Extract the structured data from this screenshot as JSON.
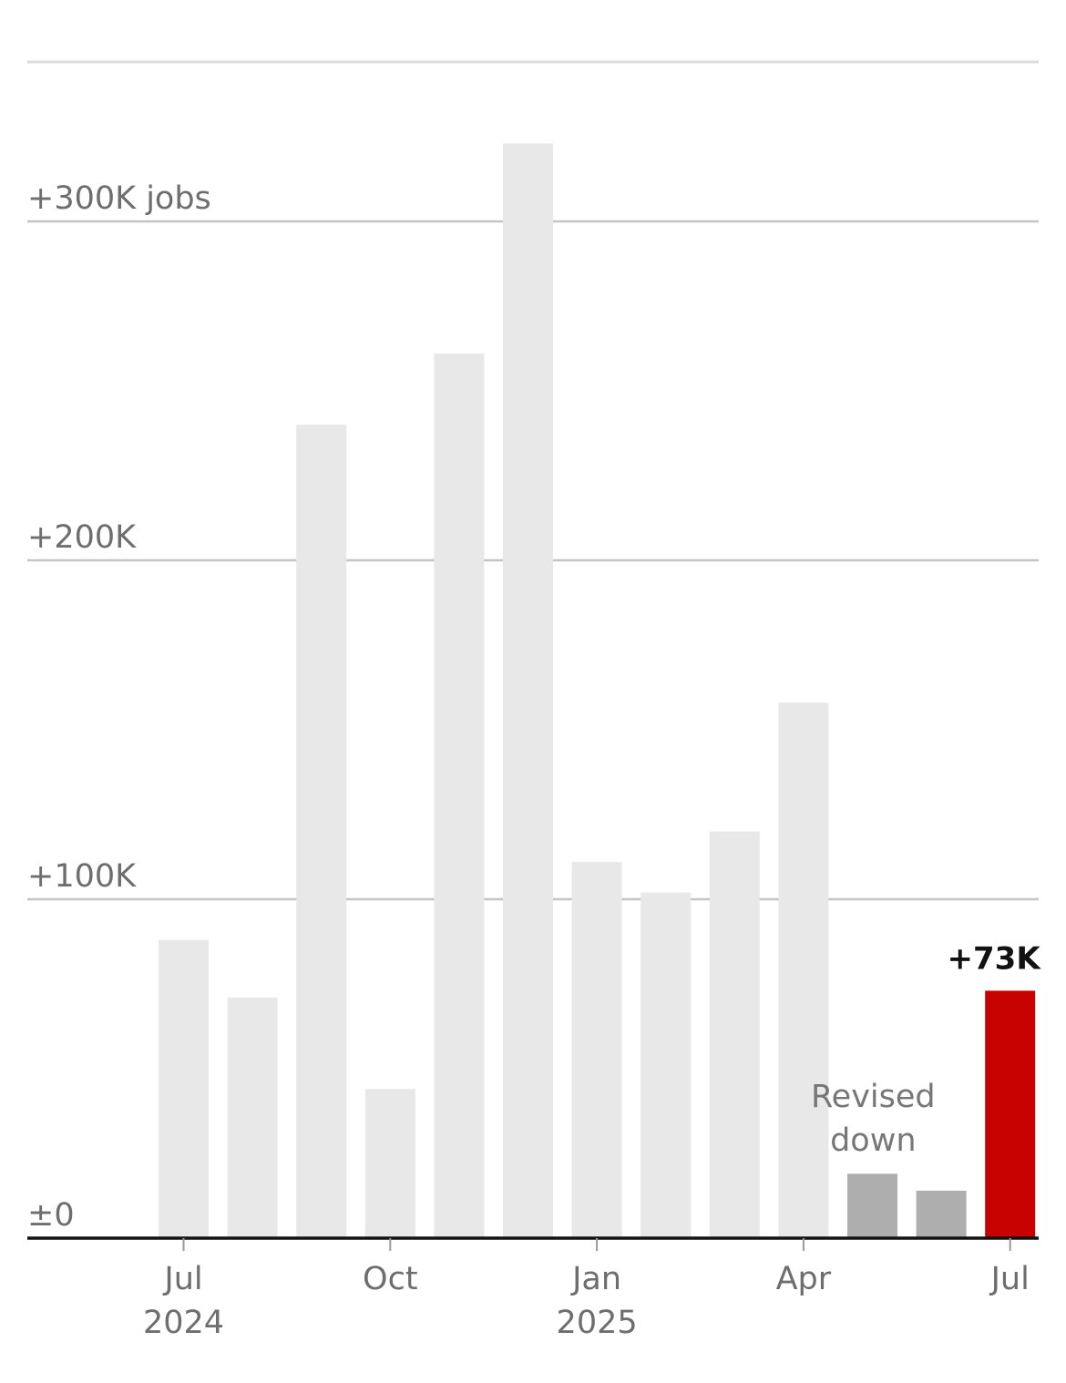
{
  "colors": {
    "bar_default": "#e8e8e8",
    "bar_revised": "#aeaeae",
    "bar_highlight": "#c70000",
    "gridline": "#c4c4c4",
    "baseline": "#121212"
  },
  "chart_data": {
    "type": "bar",
    "title": "",
    "xlabel": "",
    "ylabel": "",
    "ylim": [
      0,
      360
    ],
    "grid": true,
    "categories": [
      "2024-07",
      "2024-08",
      "2024-09",
      "2024-10",
      "2024-11",
      "2024-12",
      "2025-01",
      "2025-02",
      "2025-03",
      "2025-04",
      "2025-05",
      "2025-06",
      "2025-07"
    ],
    "series": [
      {
        "values": [
          88,
          71,
          240,
          44,
          261,
          323,
          111,
          102,
          120,
          158,
          19,
          14,
          73
        ],
        "styles": [
          "default",
          "default",
          "default",
          "default",
          "default",
          "default",
          "default",
          "default",
          "default",
          "default",
          "revised",
          "revised",
          "highlight"
        ]
      }
    ],
    "y_ticks": [
      {
        "value": 0,
        "label": "±0"
      },
      {
        "value": 100,
        "label": "+100K"
      },
      {
        "value": 200,
        "label": "+200K"
      },
      {
        "value": 300,
        "label": "+300K jobs"
      }
    ],
    "x_ticks": [
      {
        "index": 0,
        "month": "Jul",
        "year": "2024"
      },
      {
        "index": 3,
        "month": "Oct",
        "year": ""
      },
      {
        "index": 6,
        "month": "Jan",
        "year": "2025"
      },
      {
        "index": 9,
        "month": "Apr",
        "year": ""
      },
      {
        "index": 12,
        "month": "Jul",
        "year": ""
      }
    ],
    "value_label": {
      "index": 12,
      "text": "+73K"
    },
    "annotation": {
      "index_from": 10,
      "index_to": 11,
      "lines": [
        "Revised",
        "down"
      ]
    }
  }
}
